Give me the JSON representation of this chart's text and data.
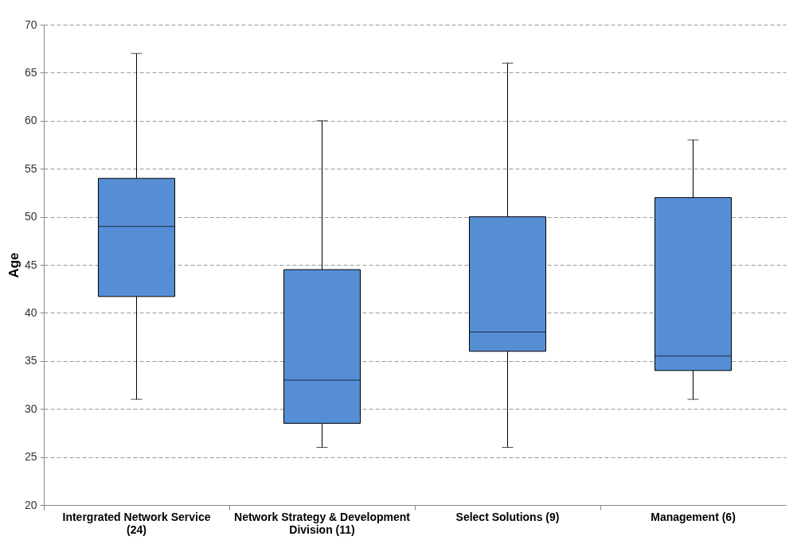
{
  "chart_data": {
    "type": "box",
    "ylabel": "Age",
    "categories": [
      "Intergrated Network Service (24)",
      "Network Strategy & Development Division (11)",
      "Select Solutions (9)",
      "Management (6)"
    ],
    "series": [
      {
        "color": "#558ed5",
        "boxes": [
          {
            "low": 31,
            "q1": 41.7,
            "median": 49,
            "q3": 54,
            "high": 67
          },
          {
            "low": 26,
            "q1": 28.5,
            "median": 33,
            "q3": 44.5,
            "high": 60
          },
          {
            "low": 26,
            "q1": 36,
            "median": 38,
            "q3": 50,
            "high": 66
          },
          {
            "low": 31,
            "q1": 34,
            "median": 35.5,
            "q3": 52,
            "high": 58
          }
        ]
      }
    ],
    "ylim": [
      20,
      70
    ],
    "yticks": [
      20,
      25,
      30,
      35,
      40,
      45,
      50,
      55,
      60,
      65,
      70
    ],
    "grid": "y"
  }
}
